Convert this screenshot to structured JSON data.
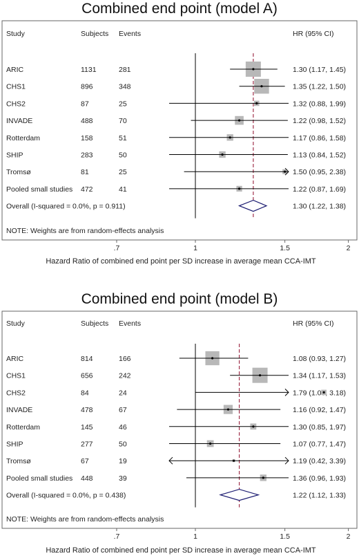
{
  "chart_data": [
    {
      "type": "forest",
      "title": "Combined end point (model A)",
      "headers": {
        "study": "Study",
        "subjects": "Subjects",
        "events": "Events",
        "hr": "HR (95% CI)"
      },
      "rows": [
        {
          "study": "ARIC",
          "subjects": "1131",
          "events": "281",
          "hr": 1.3,
          "lo": 1.17,
          "hi": 1.45,
          "weight": 1.0,
          "hr_text": "1.30 (1.17, 1.45)"
        },
        {
          "study": "CHS1",
          "subjects": "896",
          "events": "348",
          "hr": 1.35,
          "lo": 1.22,
          "hi": 1.5,
          "weight": 0.95,
          "hr_text": "1.35 (1.22, 1.50)"
        },
        {
          "study": "CHS2",
          "subjects": "87",
          "events": "25",
          "hr": 1.32,
          "lo": 0.88,
          "hi": 1.99,
          "weight": 0.12,
          "hr_text": "1.32 (0.88, 1.99)"
        },
        {
          "study": "INVADE",
          "subjects": "488",
          "events": "70",
          "hr": 1.22,
          "lo": 0.98,
          "hi": 1.52,
          "weight": 0.33,
          "hr_text": "1.22 (0.98, 1.52)"
        },
        {
          "study": "Rotterdam",
          "subjects": "158",
          "events": "51",
          "hr": 1.17,
          "lo": 0.86,
          "hi": 1.58,
          "weight": 0.18,
          "hr_text": "1.17 (0.86, 1.58)"
        },
        {
          "study": "SHIP",
          "subjects": "283",
          "events": "50",
          "hr": 1.13,
          "lo": 0.84,
          "hi": 1.52,
          "weight": 0.18,
          "hr_text": "1.13 (0.84, 1.52)"
        },
        {
          "study": "Tromsø",
          "subjects": "81",
          "events": "25",
          "hr": 1.5,
          "lo": 0.95,
          "hi": 2.38,
          "weight": 0.1,
          "hr_text": "1.50 (0.95, 2.38)",
          "arrow_hi": true
        },
        {
          "study": "Pooled small studies",
          "subjects": "472",
          "events": "41",
          "hr": 1.22,
          "lo": 0.87,
          "hi": 1.69,
          "weight": 0.14,
          "hr_text": "1.22 (0.87, 1.69)"
        }
      ],
      "overall": {
        "label": "Overall  (I-squared = 0.0%, p = 0.911)",
        "hr": 1.3,
        "lo": 1.22,
        "hi": 1.38,
        "hr_text": "1.30 (1.22, 1.38)"
      },
      "note": "NOTE: Weights are from random-effects analysis",
      "xticks": [
        ".7",
        "1",
        "1.5",
        "2"
      ],
      "xtick_values": [
        0.7,
        1,
        1.5,
        2
      ],
      "xlim": [
        0.5,
        2.38
      ],
      "xscale": "log",
      "xlabel": "Hazard Ratio of combined end point per SD increase in average mean CCA-IMT"
    },
    {
      "type": "forest",
      "title": "Combined end point (model B)",
      "headers": {
        "study": "Study",
        "subjects": "Subjects",
        "events": "Events",
        "hr": "HR (95% CI)"
      },
      "rows": [
        {
          "study": "ARIC",
          "subjects": "814",
          "events": "166",
          "hr": 1.08,
          "lo": 0.93,
          "hi": 1.27,
          "weight": 0.85,
          "hr_text": "1.08 (0.93, 1.27)"
        },
        {
          "study": "CHS1",
          "subjects": "656",
          "events": "242",
          "hr": 1.34,
          "lo": 1.17,
          "hi": 1.53,
          "weight": 1.0,
          "hr_text": "1.34 (1.17, 1.53)"
        },
        {
          "study": "CHS2",
          "subjects": "84",
          "events": "24",
          "hr": 1.79,
          "lo": 1.0,
          "hi": 3.18,
          "weight": 0.12,
          "hr_text": "1.79 (1.00, 3.18)",
          "arrow_hi": true
        },
        {
          "study": "INVADE",
          "subjects": "478",
          "events": "67",
          "hr": 1.16,
          "lo": 0.92,
          "hi": 1.47,
          "weight": 0.36,
          "hr_text": "1.16 (0.92, 1.47)"
        },
        {
          "study": "Rotterdam",
          "subjects": "145",
          "events": "46",
          "hr": 1.3,
          "lo": 0.85,
          "hi": 1.97,
          "weight": 0.16,
          "hr_text": "1.30 (0.85, 1.97)"
        },
        {
          "study": "SHIP",
          "subjects": "277",
          "events": "50",
          "hr": 1.07,
          "lo": 0.77,
          "hi": 1.47,
          "weight": 0.2,
          "hr_text": "1.07 (0.77, 1.47)"
        },
        {
          "study": "Tromsø",
          "subjects": "67",
          "events": "19",
          "hr": 1.19,
          "lo": 0.42,
          "hi": 3.39,
          "weight": 0.02,
          "hr_text": "1.19 (0.42, 3.39)",
          "arrow_lo": true,
          "arrow_hi": true
        },
        {
          "study": "Pooled small studies",
          "subjects": "448",
          "events": "39",
          "hr": 1.36,
          "lo": 0.96,
          "hi": 1.93,
          "weight": 0.18,
          "hr_text": "1.36 (0.96, 1.93)"
        }
      ],
      "overall": {
        "label": "Overall  (I-squared = 0.0%, p = 0.438)",
        "hr": 1.22,
        "lo": 1.12,
        "hi": 1.33,
        "hr_text": "1.22 (1.12, 1.33)"
      },
      "note": "NOTE: Weights are from random-effects analysis",
      "xticks": [
        ".7",
        "1",
        "1.5",
        "2"
      ],
      "xtick_values": [
        0.7,
        1,
        1.5,
        2
      ],
      "xlim": [
        0.5,
        2.38
      ],
      "xscale": "log",
      "xlabel": "Hazard Ratio of combined end point per SD increase in average mean CCA-IMT"
    }
  ],
  "colors": {
    "marker": "#b8b8b8",
    "ci": "#000000",
    "ref_line": "#000000",
    "overall_line": "#a0304a",
    "diamond": "#1a1a70",
    "frame": "#666666"
  }
}
